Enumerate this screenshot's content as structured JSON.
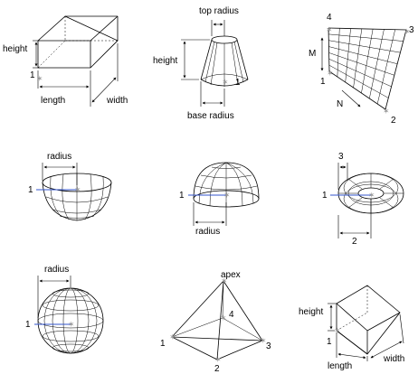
{
  "figures": {
    "box": {
      "height": "height",
      "length": "length",
      "width": "width",
      "point": "1"
    },
    "cone": {
      "top_radius": "top radius",
      "height": "height",
      "base_radius": "base radius",
      "point": "1"
    },
    "mesh": {
      "m": "M",
      "n": "N",
      "p1": "1",
      "p2": "2",
      "p3": "3",
      "p4": "4"
    },
    "dish": {
      "radius": "radius",
      "point": "1"
    },
    "dome": {
      "radius": "radius",
      "point": "1"
    },
    "torus": {
      "tube": "3",
      "point": "1",
      "outer": "2"
    },
    "sphere": {
      "radius": "radius",
      "point": "1"
    },
    "pyramid": {
      "apex": "apex",
      "p1": "1",
      "p2": "2",
      "p3": "3",
      "p4": "4"
    },
    "wedge": {
      "height": "height",
      "length": "length",
      "width": "width",
      "point": "1"
    }
  },
  "colors": {
    "axis_accent": "#3355cc",
    "marker": "#999999"
  }
}
